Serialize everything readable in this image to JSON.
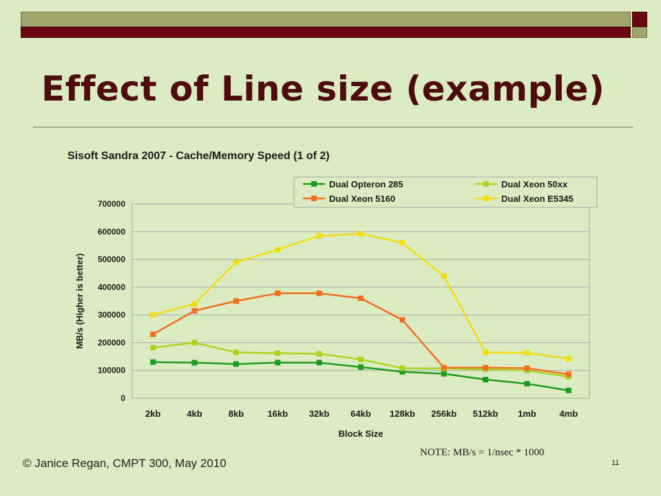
{
  "slide": {
    "title": "Effect of Line size (example)",
    "note": "NOTE: MB/s = 1/nsec  * 1000",
    "footer": "© Janice Regan, CMPT 300, May 2010",
    "page_number": "11"
  },
  "colors": {
    "background": "#dcecc2",
    "bar_olive": "#a2a46b",
    "bar_maroon": "#6b0710",
    "title": "#4e0c0f"
  },
  "chart_data": {
    "type": "line",
    "title": "Sisoft Sandra 2007 - Cache/Memory Speed (1 of 2)",
    "xlabel": "Block Size",
    "ylabel": "MB/s (Higher is better)",
    "categories": [
      "2kb",
      "4kb",
      "8kb",
      "16kb",
      "32kb",
      "64kb",
      "128kb",
      "256kb",
      "512kb",
      "1mb",
      "4mb"
    ],
    "ylim": [
      0,
      700000
    ],
    "yticks": [
      0,
      100000,
      200000,
      300000,
      400000,
      500000,
      600000,
      700000
    ],
    "grid": true,
    "legend_position": "top-right",
    "series": [
      {
        "name": "Dual Opteron 285",
        "color": "#1e9a1e",
        "values": [
          130000,
          128000,
          123000,
          128000,
          128000,
          112000,
          95000,
          88000,
          67000,
          52000,
          28000
        ]
      },
      {
        "name": "Dual Xeon 50xx",
        "color": "#a8d420",
        "values": [
          182000,
          200000,
          165000,
          162000,
          160000,
          140000,
          108000,
          107000,
          104000,
          100000,
          77000
        ]
      },
      {
        "name": "Dual Xeon 5160",
        "color": "#f07020",
        "values": [
          230000,
          315000,
          350000,
          378000,
          378000,
          360000,
          282000,
          110000,
          110000,
          108000,
          86000
        ]
      },
      {
        "name": "Dual Xeon E5345",
        "color": "#f2dc12",
        "values": [
          300000,
          340000,
          490000,
          535000,
          585000,
          592000,
          560000,
          440000,
          165000,
          163000,
          142000
        ]
      }
    ]
  }
}
